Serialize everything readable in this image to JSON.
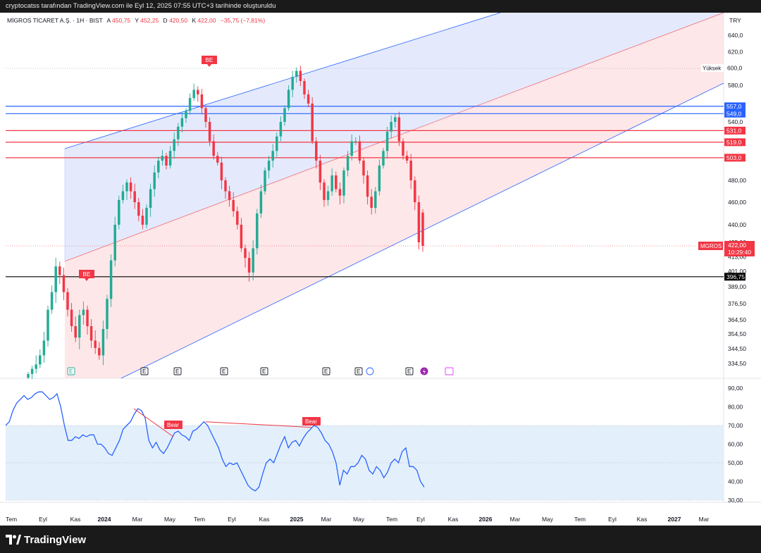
{
  "header": {
    "caption": "cryptocatss tarafından TradingView.com ile Eyl 12, 2025 07:55 UTC+3 tarihinde oluşturuldu"
  },
  "legend": {
    "symbol": "MİGROS TİCARET A.Ş. · 1H · BIST",
    "o_label": "A",
    "o_value": "450,75",
    "h_label": "Y",
    "h_value": "452,25",
    "l_label": "D",
    "l_value": "420,50",
    "c_label": "K",
    "c_value": "422,00",
    "change": "−35,75 (−7,81%)",
    "currency": "TRY"
  },
  "colors": {
    "up": "#22ab94",
    "down": "#f23645",
    "rsi_line": "#2962ff",
    "channel_blue_fill": "#dbe3fb",
    "channel_red_fill": "#fde1e3",
    "rsi_band_fill": "#e3f0fb"
  },
  "footer": {
    "brand": "TradingView"
  },
  "chart_data": [
    {
      "type": "candlestick",
      "title": "MİGROS TİCARET A.Ş. · 1H · BIST",
      "ylabel": "TRY",
      "price_axis_ticks": [
        "640,0",
        "620,0",
        "580,0",
        "540,0",
        "480,00",
        "460,00",
        "440,00",
        "425,00",
        "413,00",
        "401,00",
        "389,00",
        "376,50",
        "364,50",
        "354,50",
        "344,50",
        "334,50"
      ],
      "x_ticks": [
        "Tem",
        "Eyl",
        "Kas",
        "2024",
        "Mar",
        "May",
        "Tem",
        "Eyl",
        "Kas",
        "2025",
        "Mar",
        "May",
        "Tem",
        "Eyl",
        "Kas",
        "2026",
        "Mar",
        "May",
        "Tem",
        "Eyl",
        "Kas",
        "2027",
        "Mar"
      ],
      "x_ticks_bold": [
        "2024",
        "2025",
        "2026",
        "2027"
      ],
      "horizontal_levels": [
        {
          "label": "557,0",
          "value": 557,
          "color": "#2962ff"
        },
        {
          "label": "549,0",
          "value": 549,
          "color": "#2962ff"
        },
        {
          "label": "531,0",
          "value": 531,
          "color": "#f23645"
        },
        {
          "label": "519,0",
          "value": 519,
          "color": "#f23645"
        },
        {
          "label": "503,0",
          "value": 503,
          "color": "#f23645"
        },
        {
          "label": "396,75",
          "value": 396.75,
          "color": "#000000"
        }
      ],
      "high_marker": {
        "label": "Yüksek",
        "value": "600,0"
      },
      "last_price": {
        "symbol": "MGROS",
        "value": "422,00",
        "countdown": "10:29:40"
      },
      "signal_labels": [
        "BE",
        "BE"
      ],
      "event_markers": [
        "E",
        "E",
        "E",
        "E",
        "E",
        "E",
        "E",
        "E"
      ],
      "closes_approx": [
        318,
        326,
        333,
        340,
        350,
        372,
        385,
        405,
        398,
        385,
        372,
        360,
        352,
        368,
        372,
        360,
        350,
        345,
        340,
        358,
        380,
        410,
        440,
        462,
        470,
        478,
        470,
        460,
        448,
        440,
        455,
        472,
        488,
        500,
        505,
        495,
        510,
        522,
        535,
        544,
        552,
        566,
        575,
        570,
        555,
        540,
        520,
        505,
        498,
        480,
        470,
        462,
        452,
        440,
        420,
        412,
        400,
        420,
        450,
        470,
        490,
        500,
        510,
        525,
        540,
        555,
        575,
        590,
        597,
        585,
        570,
        560,
        520,
        500,
        478,
        462,
        470,
        485,
        472,
        466,
        490,
        505,
        520,
        520,
        500,
        485,
        465,
        455,
        470,
        495,
        510,
        530,
        540,
        545,
        520,
        505,
        500,
        480,
        460,
        425,
        422
      ],
      "ohlc_last": {
        "open": 450.75,
        "high": 452.25,
        "low": 420.5,
        "close": 422.0
      }
    },
    {
      "type": "line",
      "title": "RSI",
      "y_ticks": [
        "90,00",
        "80,00",
        "70,00",
        "60,00",
        "50,00",
        "40,00",
        "30,00"
      ],
      "ylim": [
        30,
        90
      ],
      "band": [
        30,
        70
      ],
      "series": [
        {
          "values": [
            70,
            72,
            78,
            82,
            84,
            86,
            84,
            85,
            87,
            88,
            88,
            86,
            84,
            85,
            87,
            80,
            70,
            62,
            62,
            64,
            63,
            65,
            64,
            65,
            65,
            60,
            60,
            58,
            55,
            54,
            58,
            62,
            68,
            70,
            72,
            76,
            79,
            78,
            74,
            62,
            58,
            61,
            57,
            55,
            58,
            62,
            66,
            67,
            65,
            64,
            62,
            67,
            68,
            70,
            72,
            70,
            66,
            62,
            58,
            52,
            48,
            50,
            49,
            50,
            46,
            42,
            38,
            36,
            35,
            37,
            44,
            50,
            52,
            50,
            55,
            60,
            64,
            58,
            61,
            62,
            59,
            63,
            66,
            68,
            70,
            69,
            66,
            62,
            60,
            56,
            50,
            38,
            46,
            44,
            48,
            48,
            50,
            54,
            52,
            46,
            44,
            48,
            46,
            42,
            45,
            50,
            52,
            50,
            56,
            58,
            48,
            48,
            46,
            40,
            37
          ]
        }
      ],
      "annotations": [
        "Bear",
        "Bear"
      ]
    }
  ]
}
